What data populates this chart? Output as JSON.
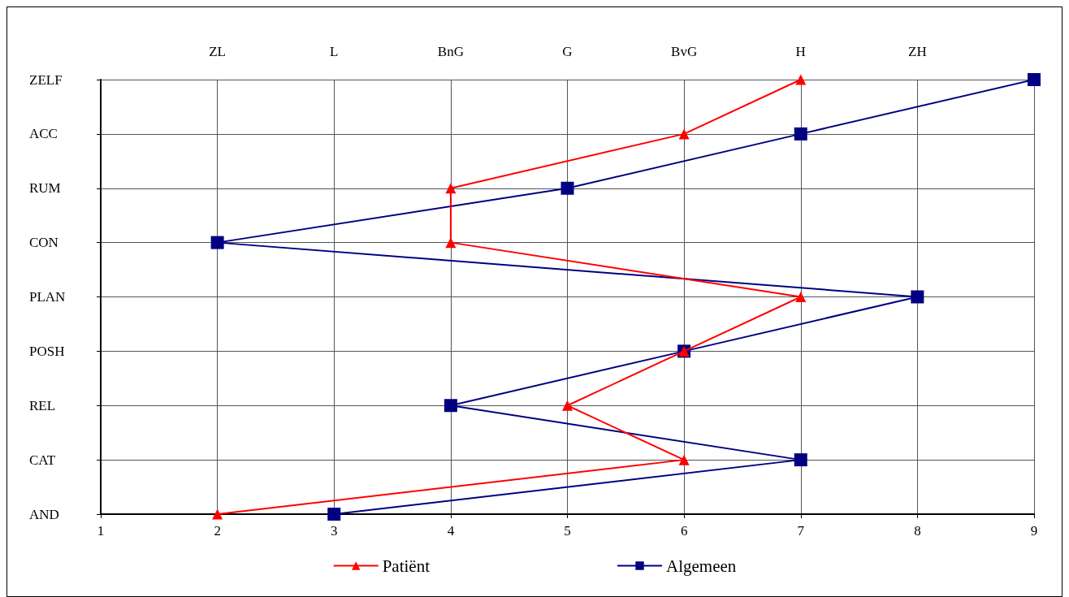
{
  "chart_data": {
    "type": "line",
    "orientation": "horizontal",
    "categories": [
      "ZELF",
      "ACC",
      "RUM",
      "CON",
      "PLAN",
      "POSH",
      "REL",
      "CAT",
      "AND"
    ],
    "series": [
      {
        "name": "Patiënt",
        "color": "#ff0000",
        "marker": "triangle",
        "values": [
          7,
          6,
          4,
          4,
          7,
          6,
          5,
          6,
          2
        ]
      },
      {
        "name": "Algemeen",
        "color": "#000080",
        "marker": "square",
        "values": [
          9,
          7,
          5,
          2,
          8,
          6,
          4,
          7,
          3
        ]
      }
    ],
    "xlim": [
      1,
      9
    ],
    "xticks": [
      1,
      2,
      3,
      4,
      5,
      6,
      7,
      8,
      9
    ],
    "annotations": [
      "ZL",
      "L",
      "BnG",
      "G",
      "BvG",
      "H",
      "ZH"
    ],
    "grid": true,
    "legend": "bottom",
    "line_style": "solid"
  }
}
